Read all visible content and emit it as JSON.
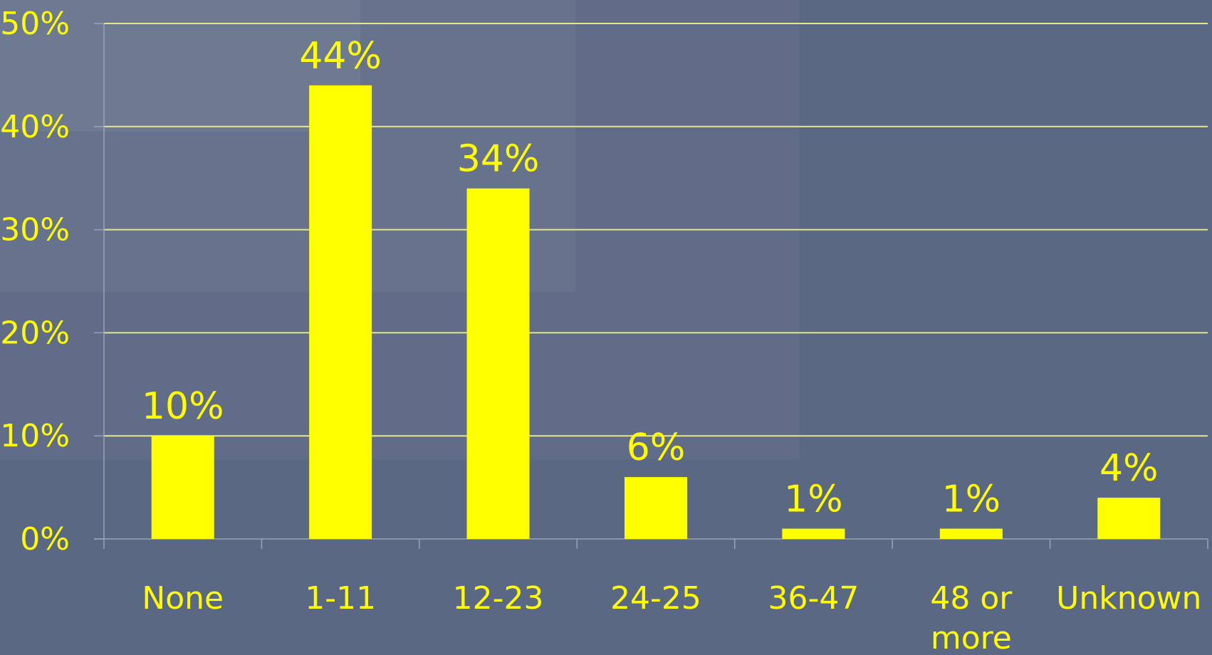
{
  "chart_data": {
    "type": "bar",
    "categories": [
      "None",
      "1-11",
      "12-23",
      "24-25",
      "36-47",
      "48 or more",
      "Unknown"
    ],
    "values": [
      10,
      44,
      34,
      6,
      1,
      1,
      4
    ],
    "data_labels": [
      "10%",
      "44%",
      "34%",
      "6%",
      "1%",
      "1%",
      "4%"
    ],
    "y_ticks": [
      0,
      10,
      20,
      30,
      40,
      50
    ],
    "y_tick_labels": [
      "0%",
      "10%",
      "20%",
      "30%",
      "40%",
      "50%"
    ],
    "ylim": [
      0,
      50
    ],
    "grid": true,
    "title": "",
    "xlabel": "",
    "ylabel": "",
    "colors": {
      "background": "#5b6884",
      "bar": "#ffff00",
      "text": "#ffff00",
      "gridline": "#e6e68c",
      "axis": "#9aa2b4"
    }
  }
}
